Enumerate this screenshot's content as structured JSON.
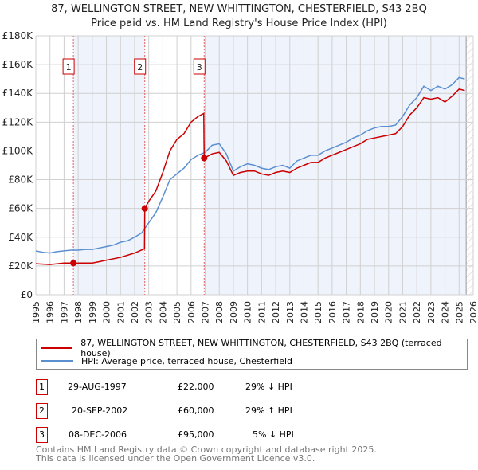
{
  "chart_data": {
    "type": "line",
    "title": "87, WELLINGTON STREET, NEW WHITTINGTON, CHESTERFIELD, S43 2BQ",
    "subtitle": "Price paid vs. HM Land Registry's House Price Index (HPI)",
    "xlim": [
      1995,
      2026
    ],
    "ylim": [
      0,
      180000
    ],
    "y_ticks": [
      {
        "v": 0,
        "label": "£0"
      },
      {
        "v": 20000,
        "label": "£20K"
      },
      {
        "v": 40000,
        "label": "£40K"
      },
      {
        "v": 60000,
        "label": "£60K"
      },
      {
        "v": 80000,
        "label": "£80K"
      },
      {
        "v": 100000,
        "label": "£100K"
      },
      {
        "v": 120000,
        "label": "£120K"
      },
      {
        "v": 140000,
        "label": "£140K"
      },
      {
        "v": 160000,
        "label": "£160K"
      },
      {
        "v": 180000,
        "label": "£180K"
      }
    ],
    "x_ticks": [
      "1995",
      "1996",
      "1997",
      "1998",
      "1999",
      "2000",
      "2001",
      "2002",
      "2003",
      "2004",
      "2005",
      "2006",
      "2007",
      "2008",
      "2009",
      "2010",
      "2011",
      "2012",
      "2013",
      "2014",
      "2015",
      "2016",
      "2017",
      "2018",
      "2019",
      "2020",
      "2021",
      "2022",
      "2023",
      "2024",
      "2025",
      "2026"
    ],
    "grid": true,
    "colors": {
      "property": "#cc0000",
      "hpi": "#5b8fd0",
      "shade": "#eef3fc"
    },
    "series": [
      {
        "name": "87, WELLINGTON STREET, NEW WHITTINGTON, CHESTERFIELD, S43 2BQ (terraced house)",
        "color": "#cc0000",
        "x": [
          1995,
          1996,
          1997,
          1997.66,
          1998,
          1999,
          1999.5,
          2000,
          2001,
          2002,
          2002.7,
          2002.72,
          2003,
          2003.5,
          2004,
          2004.5,
          2005,
          2005.5,
          2006,
          2006.5,
          2006.9,
          2006.93,
          2007.5,
          2008,
          2008.5,
          2009,
          2009.5,
          2010,
          2010.5,
          2011,
          2011.5,
          2012,
          2012.5,
          2013,
          2013.5,
          2014,
          2014.5,
          2015,
          2015.5,
          2016,
          2016.5,
          2017,
          2017.5,
          2018,
          2018.5,
          2019,
          2019.5,
          2020,
          2020.5,
          2021,
          2021.5,
          2022,
          2022.5,
          2023,
          2023.5,
          2024,
          2024.5,
          2025,
          2025.4
        ],
        "y": [
          21500,
          21000,
          22000,
          22000,
          22000,
          22000,
          23000,
          24000,
          26000,
          29000,
          32000,
          60000,
          65000,
          72000,
          85000,
          100000,
          108000,
          112000,
          120000,
          124000,
          126000,
          95000,
          98000,
          99000,
          93000,
          83000,
          85000,
          86000,
          86000,
          84000,
          83000,
          85000,
          86000,
          85000,
          88000,
          90000,
          92000,
          92000,
          95000,
          97000,
          99000,
          101000,
          103000,
          105000,
          108000,
          109000,
          110000,
          111000,
          112000,
          117000,
          125000,
          130000,
          137000,
          136000,
          137000,
          134000,
          138000,
          143000,
          142000
        ]
      },
      {
        "name": "HPI: Average price, terraced house, Chesterfield",
        "color": "#5b8fd0",
        "x": [
          1995,
          1995.5,
          1996,
          1996.5,
          1997,
          1997.5,
          1998,
          1998.5,
          1999,
          1999.5,
          2000,
          2000.5,
          2001,
          2001.5,
          2002,
          2002.5,
          2003,
          2003.5,
          2004,
          2004.5,
          2005,
          2005.5,
          2006,
          2006.5,
          2007,
          2007.5,
          2008,
          2008.5,
          2009,
          2009.5,
          2010,
          2010.5,
          2011,
          2011.5,
          2012,
          2012.5,
          2013,
          2013.5,
          2014,
          2014.5,
          2015,
          2015.5,
          2016,
          2016.5,
          2017,
          2017.5,
          2018,
          2018.5,
          2019,
          2019.5,
          2020,
          2020.5,
          2021,
          2021.5,
          2022,
          2022.5,
          2023,
          2023.5,
          2024,
          2024.5,
          2025,
          2025.4
        ],
        "y": [
          30500,
          29500,
          29000,
          30000,
          30500,
          31000,
          31000,
          31500,
          31500,
          32500,
          33500,
          34500,
          36500,
          37500,
          40000,
          43000,
          50000,
          57000,
          68000,
          80000,
          84000,
          88000,
          94000,
          97000,
          99000,
          104000,
          105000,
          98000,
          86000,
          89000,
          91000,
          90000,
          88000,
          87000,
          89000,
          90000,
          88000,
          93000,
          95000,
          97000,
          97000,
          100000,
          102000,
          104000,
          106000,
          109000,
          111000,
          114000,
          116000,
          117000,
          117000,
          118000,
          124000,
          132000,
          137000,
          145000,
          142000,
          145000,
          143000,
          146000,
          151000,
          150000
        ]
      }
    ],
    "sales": [
      {
        "id": "1",
        "x": 1997.66,
        "price": 22000,
        "date": "29-AUG-1997",
        "price_label": "£22,000",
        "hpi": "29% ↓ HPI"
      },
      {
        "id": "2",
        "x": 2002.72,
        "price": 60000,
        "date": "20-SEP-2002",
        "price_label": "£60,000",
        "hpi": "29% ↑ HPI"
      },
      {
        "id": "3",
        "x": 2006.93,
        "price": 95000,
        "date": "08-DEC-2006",
        "price_label": "£95,000",
        "hpi": "5% ↓ HPI"
      }
    ],
    "shaded_ranges": [
      [
        1997.66,
        2002.72
      ],
      [
        2006.93,
        2025.5
      ]
    ],
    "forecast_from": 2025.5
  },
  "footer": [
    "Contains HM Land Registry data © Crown copyright and database right 2025.",
    "This data is licensed under the Open Government Licence v3.0."
  ]
}
